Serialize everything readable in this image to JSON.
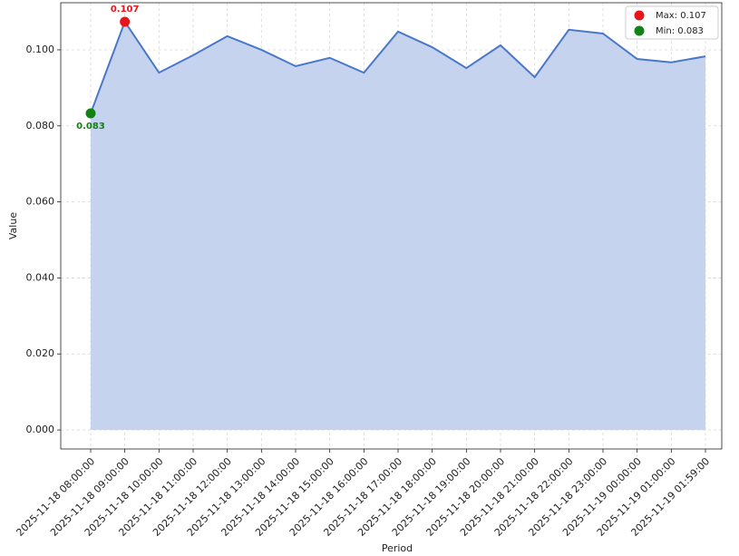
{
  "chart_data": {
    "type": "area",
    "x_label": "Period",
    "y_label": "Value",
    "categories": [
      "2025-11-18 08:00:00",
      "2025-11-18 09:00:00",
      "2025-11-18 10:00:00",
      "2025-11-18 11:00:00",
      "2025-11-18 12:00:00",
      "2025-11-18 13:00:00",
      "2025-11-18 14:00:00",
      "2025-11-18 15:00:00",
      "2025-11-18 16:00:00",
      "2025-11-18 17:00:00",
      "2025-11-18 18:00:00",
      "2025-11-18 19:00:00",
      "2025-11-18 20:00:00",
      "2025-11-18 21:00:00",
      "2025-11-18 22:00:00",
      "2025-11-18 23:00:00",
      "2025-11-19 00:00:00",
      "2025-11-19 01:00:00",
      "2025-11-19 01:59:00"
    ],
    "values": [
      0.0833,
      0.1074,
      0.094,
      0.0986,
      0.1036,
      0.1,
      0.0957,
      0.0979,
      0.094,
      0.1048,
      0.1007,
      0.0952,
      0.1012,
      0.0928,
      0.1053,
      0.1043,
      0.0976,
      0.0967,
      0.0983
    ],
    "color": "#4a78c8",
    "fill_color": "#c5d3ee",
    "ylim": [
      -0.005,
      0.1124
    ],
    "yticks": [
      {
        "value": 0,
        "label": "0.000"
      },
      {
        "value": 0.02,
        "label": "0.020"
      },
      {
        "value": 0.04,
        "label": "0.040"
      },
      {
        "value": 0.06,
        "label": "0.060"
      },
      {
        "value": 0.08,
        "label": "0.080"
      },
      {
        "value": 0.1,
        "label": "0.100"
      }
    ],
    "grid": true,
    "legend_position": "upper right",
    "markers": [
      {
        "name": "Max: 0.107",
        "label": "0.107",
        "color": "#e8141c",
        "x": "2025-11-18 09:00:00",
        "value": 0.1074
      },
      {
        "name": "Min: 0.083",
        "label": "0.083",
        "color": "#128212",
        "x": "2025-11-18 08:00:00",
        "value": 0.0833
      }
    ]
  }
}
